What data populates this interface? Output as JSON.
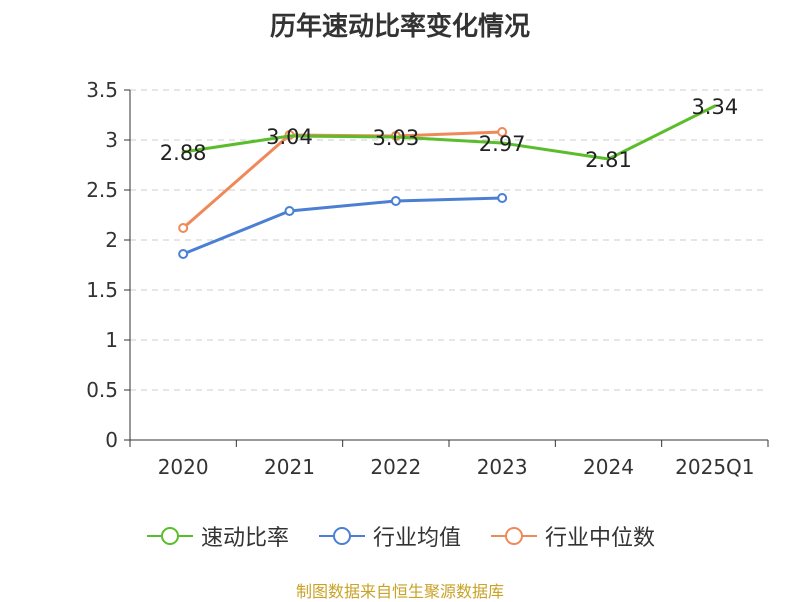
{
  "title": "历年速动比率变化情况",
  "footer": "制图数据来自恒生聚源数据库",
  "colors": {
    "title": "#333333",
    "footer": "#c9a227",
    "axis": "#333333",
    "grid": "#cccccc"
  },
  "chart_data": {
    "type": "line",
    "title": "历年速动比率变化情况",
    "categories": [
      "2020",
      "2021",
      "2022",
      "2023",
      "2024",
      "2025Q1"
    ],
    "ylim": [
      0,
      3.5
    ],
    "yticks": [
      0,
      0.5,
      1,
      1.5,
      2,
      2.5,
      3,
      3.5
    ],
    "ytick_labels": [
      "0",
      "0.5",
      "1",
      "1.5",
      "2",
      "2.5",
      "3",
      "3.5"
    ],
    "grid": true,
    "legend_position": "bottom",
    "series": [
      {
        "name": "速动比率",
        "color": "#5bbd2b",
        "values": [
          2.88,
          3.04,
          3.03,
          2.97,
          2.81,
          3.34
        ],
        "labels": [
          "2.88",
          "3.04",
          "3.03",
          "2.97",
          "2.81",
          "3.34"
        ],
        "show_markers": false
      },
      {
        "name": "行业均值",
        "color": "#4a7fd4",
        "values": [
          1.86,
          2.29,
          2.39,
          2.42,
          null,
          null
        ],
        "labels": null,
        "show_markers": true
      },
      {
        "name": "行业中位数",
        "color": "#f0895a",
        "values": [
          2.12,
          3.05,
          3.04,
          3.08,
          null,
          null
        ],
        "labels": null,
        "show_markers": true
      }
    ]
  }
}
